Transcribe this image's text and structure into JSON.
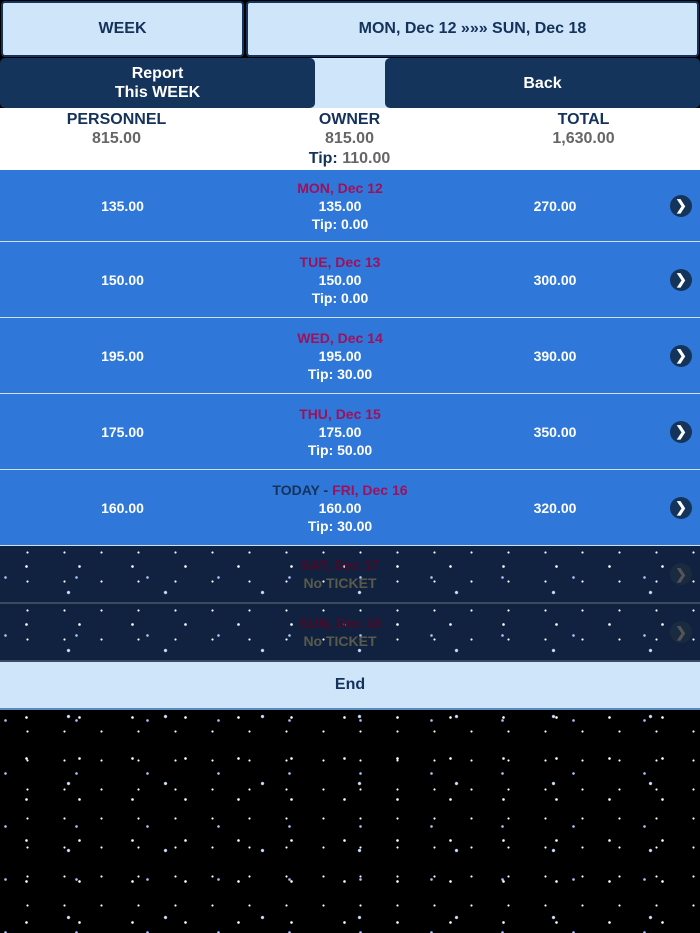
{
  "header": {
    "week_label": "WEEK",
    "range_label": "MON, Dec 12 »»» SUN, Dec 18"
  },
  "actions": {
    "report_line1": "Report",
    "report_line2": "This WEEK",
    "back_label": "Back"
  },
  "summary": {
    "personnel_label": "PERSONNEL",
    "personnel_value": "815.00",
    "owner_label": "OWNER",
    "owner_value": "815.00",
    "tip_label": "Tip:",
    "tip_value": "110.00",
    "total_label": "TOTAL",
    "total_value": "1,630.00"
  },
  "days": [
    {
      "date": "MON, Dec 12",
      "personnel": "135.00",
      "owner": "135.00",
      "tip": "Tip: 0.00",
      "total": "270.00"
    },
    {
      "date": "TUE, Dec 13",
      "personnel": "150.00",
      "owner": "150.00",
      "tip": "Tip: 0.00",
      "total": "300.00"
    },
    {
      "date": "WED, Dec 14",
      "personnel": "195.00",
      "owner": "195.00",
      "tip": "Tip: 30.00",
      "total": "390.00"
    },
    {
      "date": "THU, Dec 15",
      "personnel": "175.00",
      "owner": "175.00",
      "tip": "Tip: 50.00",
      "total": "350.00"
    },
    {
      "prefix": "TODAY - ",
      "date": "FRI, Dec 16",
      "personnel": "160.00",
      "owner": "160.00",
      "tip": "Tip: 30.00",
      "total": "320.00"
    }
  ],
  "empty_days": [
    {
      "date": "SAT, Dec 17",
      "status": "No TICKET"
    },
    {
      "date": "SUN, Dec 18",
      "status": "No TICKET"
    }
  ],
  "footer": {
    "end_label": "End"
  },
  "colors": {
    "row_blue": "#2f78d9",
    "navy": "#15345c",
    "light": "#cfe6fa",
    "date": "#a0105a"
  },
  "icons": {
    "row_chevron": "chevron-right-icon"
  }
}
